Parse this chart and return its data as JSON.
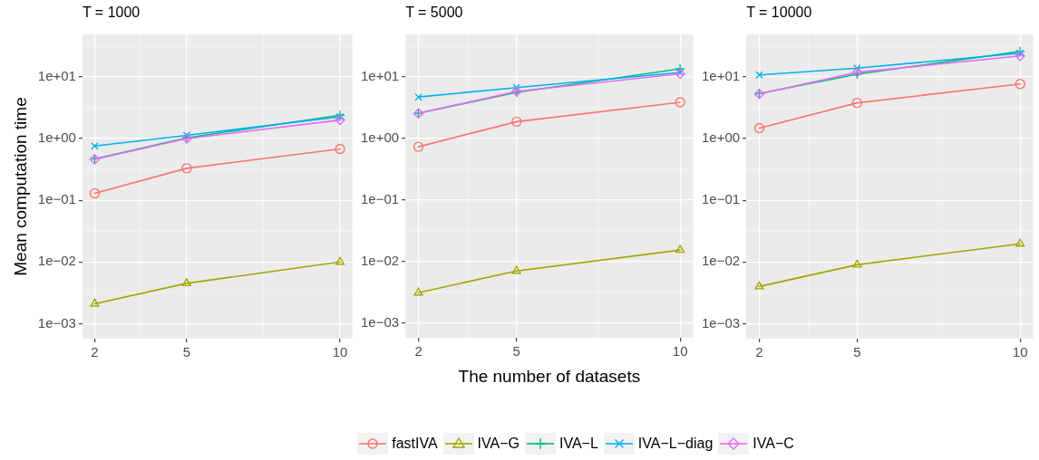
{
  "chart_data": [
    {
      "type": "line",
      "title": "T = 1000",
      "ylabel": "Mean computation time",
      "x": [
        2,
        5,
        10
      ],
      "xlim": [
        1.6,
        10.4
      ],
      "xticks": [
        2,
        5,
        10
      ],
      "log": "y",
      "ylim": [
        0.00057,
        49
      ],
      "yticks": [
        {
          "value": 0.001,
          "label": "1e−03"
        },
        {
          "value": 0.01,
          "label": "1e−02"
        },
        {
          "value": 0.1,
          "label": "1e−01"
        },
        {
          "value": 1,
          "label": "1e+00"
        },
        {
          "value": 10,
          "label": "1e+01"
        }
      ],
      "grid": true,
      "legend": "bottom",
      "series": [
        {
          "name": "fastIVA",
          "color": "#f8766d",
          "marker": "circle",
          "values": [
            0.13,
            0.33,
            0.68
          ]
        },
        {
          "name": "IVA−G",
          "color": "#a3a500",
          "marker": "triangle",
          "values": [
            0.0021,
            0.0045,
            0.01
          ]
        },
        {
          "name": "IVA−L",
          "color": "#00bf7d",
          "marker": "cross",
          "values": [
            0.47,
            1.03,
            2.4
          ]
        },
        {
          "name": "IVA−L−diag",
          "color": "#00b0f6",
          "marker": "x",
          "values": [
            0.76,
            1.13,
            2.26
          ]
        },
        {
          "name": "IVA−C",
          "color": "#e76bf3",
          "marker": "diamond",
          "values": [
            0.46,
            1.0,
            2.0
          ]
        }
      ]
    },
    {
      "type": "line",
      "title": "T = 5000",
      "xlabel": "The number of datasets",
      "x": [
        2,
        5,
        10
      ],
      "xlim": [
        1.6,
        10.4
      ],
      "xticks": [
        2,
        5,
        10
      ],
      "log": "y",
      "ylim": [
        0.00057,
        49
      ],
      "yticks": [
        {
          "value": 0.001,
          "label": "1e−03"
        },
        {
          "value": 0.01,
          "label": "1e−02"
        },
        {
          "value": 0.1,
          "label": "1e−01"
        },
        {
          "value": 1,
          "label": "1e+00"
        },
        {
          "value": 10,
          "label": "1e+01"
        }
      ],
      "grid": true,
      "series": [
        {
          "color": "#f8766d",
          "marker": "circle",
          "values": [
            0.73,
            1.87,
            3.85
          ]
        },
        {
          "color": "#a3a500",
          "marker": "triangle",
          "values": [
            0.0031,
            0.007,
            0.0153
          ]
        },
        {
          "color": "#00bf7d",
          "marker": "cross",
          "values": [
            2.57,
            5.6,
            13.5
          ]
        },
        {
          "color": "#00b0f6",
          "marker": "x",
          "values": [
            4.7,
            6.7,
            11.8
          ]
        },
        {
          "color": "#e76bf3",
          "marker": "diamond",
          "values": [
            2.54,
            5.8,
            11.2
          ]
        }
      ]
    },
    {
      "type": "line",
      "title": "T = 10000",
      "x": [
        2,
        5,
        10
      ],
      "xlim": [
        1.6,
        10.4
      ],
      "xticks": [
        2,
        5,
        10
      ],
      "log": "y",
      "ylim": [
        0.00057,
        49
      ],
      "yticks": [
        {
          "value": 0.001,
          "label": "1e−03"
        },
        {
          "value": 0.01,
          "label": "1e−02"
        },
        {
          "value": 0.1,
          "label": "1e−01"
        },
        {
          "value": 1,
          "label": "1e+00"
        },
        {
          "value": 10,
          "label": "1e+01"
        }
      ],
      "grid": true,
      "series": [
        {
          "color": "#f8766d",
          "marker": "circle",
          "values": [
            1.48,
            3.8,
            7.7
          ]
        },
        {
          "color": "#a3a500",
          "marker": "triangle",
          "values": [
            0.004,
            0.009,
            0.0197
          ]
        },
        {
          "color": "#00bf7d",
          "marker": "cross",
          "values": [
            5.4,
            11.1,
            25.9
          ]
        },
        {
          "color": "#00b0f6",
          "marker": "x",
          "values": [
            10.8,
            13.9,
            24.3
          ]
        },
        {
          "color": "#e76bf3",
          "marker": "diamond",
          "values": [
            5.3,
            11.9,
            21.9
          ]
        }
      ]
    }
  ]
}
